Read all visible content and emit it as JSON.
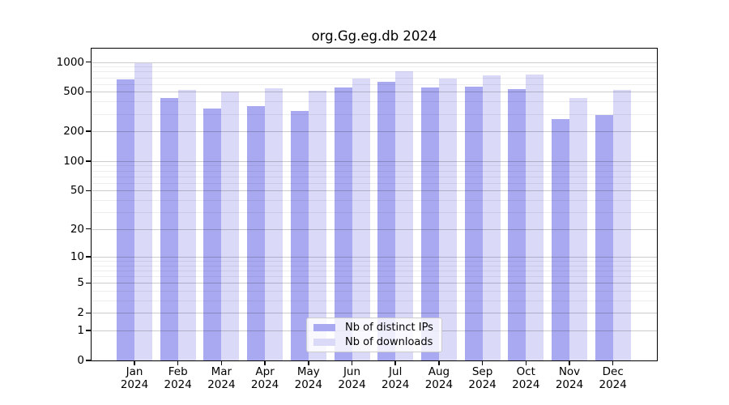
{
  "chart_data": {
    "type": "bar",
    "title": "org.Gg.eg.db 2024",
    "categories": [
      "Jan 2024",
      "Feb 2024",
      "Mar 2024",
      "Apr 2024",
      "May 2024",
      "Jun 2024",
      "Jul 2024",
      "Aug 2024",
      "Sep 2024",
      "Oct 2024",
      "Nov 2024",
      "Dec 2024"
    ],
    "series": [
      {
        "name": "Nb of distinct IPs",
        "color": "#a9a9f2",
        "values": [
          663,
          430,
          337,
          363,
          324,
          550,
          627,
          550,
          560,
          529,
          264,
          290
        ]
      },
      {
        "name": "Nb of downloads",
        "color": "#dadaf8",
        "values": [
          966,
          520,
          500,
          539,
          515,
          685,
          805,
          676,
          729,
          742,
          430,
          520
        ]
      }
    ],
    "y_axis": {
      "scale": "log10(1+x)",
      "ticks": [
        0,
        1,
        2,
        5,
        10,
        20,
        50,
        100,
        200,
        500,
        1000
      ],
      "minor_gridlines": [
        3,
        4,
        6,
        7,
        8,
        9,
        30,
        40,
        60,
        70,
        80,
        90,
        300,
        400,
        600,
        700,
        800,
        900
      ],
      "ylim": [
        0,
        1360
      ]
    },
    "grid": true,
    "legend": {
      "position": "lower center",
      "entries": [
        "Nb of distinct IPs",
        "Nb of downloads"
      ]
    }
  }
}
